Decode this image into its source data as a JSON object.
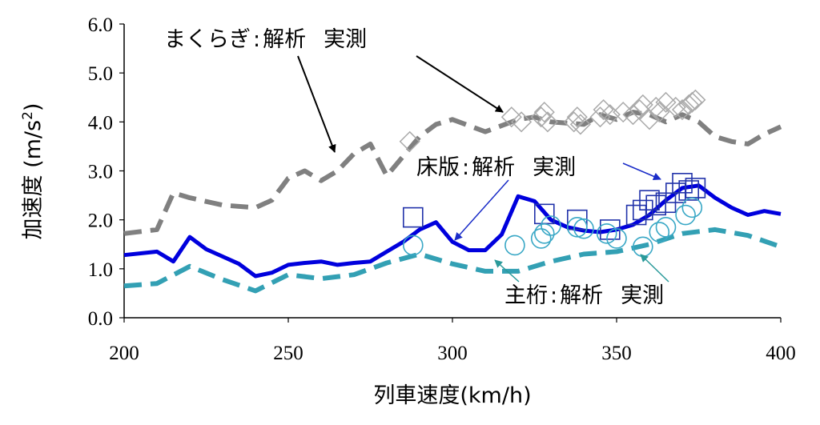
{
  "chart_data": {
    "type": "line",
    "title": "",
    "xlabel": "列車速度(km/h)",
    "ylabel": "加速度 (m/s²)",
    "ylabel_parts": {
      "main": "加速度 (m/s",
      "sup": "2",
      "close": ")"
    },
    "xlim": [
      200,
      400
    ],
    "ylim": [
      0,
      6
    ],
    "x_ticks": [
      200,
      250,
      300,
      350,
      400
    ],
    "x_tick_labels": [
      "200",
      "250",
      "300",
      "350",
      "400"
    ],
    "y_ticks": [
      0,
      1,
      2,
      3,
      4,
      5,
      6
    ],
    "y_tick_labels": [
      "0.0",
      "1.0",
      "2.0",
      "3.0",
      "4.0",
      "5.0",
      "6.0"
    ],
    "grid": false,
    "legend": "none (inline annotations)",
    "series": [
      {
        "group": "sleeper",
        "kind": "analysis",
        "style": "dashed",
        "color": "#808080",
        "x": [
          200,
          210,
          215,
          220,
          230,
          240,
          245,
          250,
          255,
          260,
          265,
          270,
          275,
          280,
          285,
          290,
          295,
          300,
          310,
          320,
          325,
          330,
          340,
          345,
          350,
          355,
          360,
          365,
          370,
          375,
          380,
          385,
          390,
          395,
          400
        ],
        "y": [
          1.72,
          1.8,
          2.55,
          2.45,
          2.3,
          2.25,
          2.4,
          2.85,
          3.0,
          2.8,
          3.0,
          3.35,
          3.55,
          2.9,
          3.3,
          3.7,
          3.95,
          4.05,
          3.8,
          4.05,
          4.1,
          4.0,
          3.95,
          4.15,
          4.05,
          4.2,
          4.15,
          4.0,
          4.15,
          4.0,
          3.7,
          3.6,
          3.55,
          3.75,
          3.9
        ]
      },
      {
        "group": "sleeper",
        "kind": "measured",
        "marker": "diamond",
        "color": "#aaaaaa",
        "x": [
          287,
          318,
          321,
          327,
          328,
          329,
          337,
          338,
          339,
          345,
          346,
          348,
          352,
          355,
          357,
          358,
          360,
          362,
          363,
          365,
          368,
          370,
          372,
          373,
          374
        ],
        "y": [
          3.6,
          4.1,
          4.0,
          4.1,
          4.2,
          4.0,
          4.0,
          4.1,
          3.95,
          4.1,
          4.25,
          4.15,
          4.2,
          4.15,
          4.25,
          4.35,
          4.05,
          4.3,
          4.2,
          4.4,
          4.3,
          4.25,
          4.35,
          4.4,
          4.45
        ]
      },
      {
        "group": "slab",
        "kind": "analysis",
        "style": "solid",
        "color": "#0000dd",
        "x": [
          200,
          210,
          215,
          220,
          225,
          230,
          235,
          240,
          245,
          250,
          255,
          260,
          265,
          270,
          275,
          280,
          285,
          290,
          295,
          300,
          305,
          310,
          315,
          320,
          325,
          330,
          335,
          340,
          345,
          350,
          355,
          360,
          365,
          370,
          375,
          380,
          385,
          390,
          395,
          400
        ],
        "y": [
          1.28,
          1.35,
          1.15,
          1.65,
          1.4,
          1.25,
          1.1,
          0.85,
          0.92,
          1.08,
          1.12,
          1.15,
          1.08,
          1.12,
          1.15,
          1.35,
          1.55,
          1.8,
          1.95,
          1.55,
          1.38,
          1.38,
          1.7,
          2.48,
          2.38,
          2.0,
          1.85,
          1.78,
          1.75,
          1.8,
          1.9,
          2.1,
          2.4,
          2.65,
          2.7,
          2.45,
          2.25,
          2.1,
          2.18,
          2.12
        ]
      },
      {
        "group": "slab",
        "kind": "measured",
        "marker": "square",
        "color": "#2233aa",
        "x": [
          288,
          328,
          338,
          348,
          356,
          358,
          360,
          362,
          365,
          368,
          370,
          372,
          374
        ],
        "y": [
          2.05,
          2.12,
          2.0,
          1.8,
          2.1,
          2.2,
          2.4,
          2.3,
          2.35,
          2.55,
          2.75,
          2.6,
          2.65
        ]
      },
      {
        "group": "girder",
        "kind": "analysis",
        "style": "dashed",
        "color": "#33a0b4",
        "x": [
          200,
          210,
          220,
          230,
          240,
          250,
          260,
          270,
          280,
          290,
          300,
          310,
          320,
          330,
          340,
          350,
          360,
          370,
          380,
          390,
          400
        ],
        "y": [
          0.65,
          0.7,
          1.05,
          0.78,
          0.55,
          0.88,
          0.8,
          0.88,
          1.12,
          1.3,
          1.1,
          0.95,
          0.95,
          1.15,
          1.3,
          1.35,
          1.5,
          1.72,
          1.8,
          1.68,
          1.45
        ]
      },
      {
        "group": "girder",
        "kind": "measured",
        "marker": "circle",
        "color": "#3aa8c6",
        "x": [
          288,
          319,
          327,
          328,
          330,
          338,
          340,
          347,
          350,
          358,
          363,
          365,
          371,
          373
        ],
        "y": [
          1.48,
          1.48,
          1.62,
          1.72,
          1.88,
          1.85,
          1.82,
          1.72,
          1.62,
          1.45,
          1.75,
          1.85,
          2.1,
          2.25
        ]
      }
    ],
    "annotations": [
      {
        "group": "sleeper",
        "label": "まくらぎ",
        "sep": ":",
        "analysis": "解析",
        "measured": "実測"
      },
      {
        "group": "slab",
        "label": "床版",
        "sep": ":",
        "analysis": "解析",
        "measured": "実測"
      },
      {
        "group": "girder",
        "label": "主桁",
        "sep": ":",
        "analysis": "解析",
        "measured": "実測"
      }
    ]
  }
}
